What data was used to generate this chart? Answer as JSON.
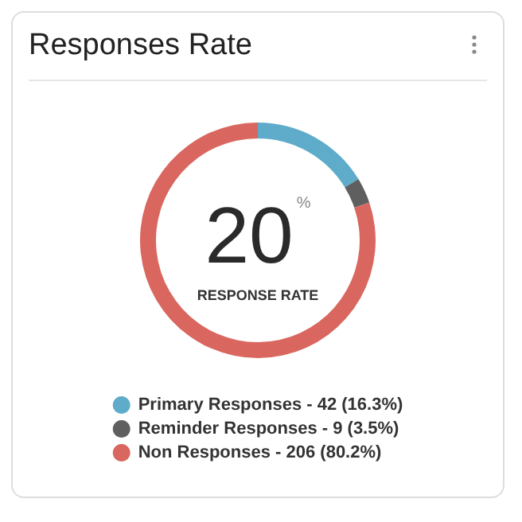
{
  "chart_data": {
    "type": "donut",
    "title": "Responses Rate",
    "categories": [
      "Primary Responses - 42 (16.3%)",
      "Reminder Responses - 9 (3.5%)",
      "Non Responses - 206 (80.2%)"
    ],
    "values": [
      16.3,
      3.5,
      80.2
    ],
    "colors": [
      "#5eacca",
      "#5f5f5f",
      "#d9675f"
    ],
    "annotations": [
      "20$^{%}$",
      "RESPONSE RATE"
    ],
    "legend": "bottom"
  }
}
